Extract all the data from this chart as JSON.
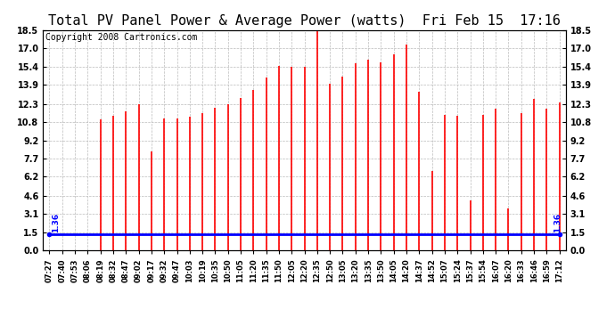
{
  "title": "Total PV Panel Power & Average Power (watts)  Fri Feb 15  17:16",
  "copyright": "Copyright 2008 Cartronics.com",
  "average_value": 1.36,
  "y_ticks": [
    0.0,
    1.5,
    3.1,
    4.6,
    6.2,
    7.7,
    9.2,
    10.8,
    12.3,
    13.9,
    15.4,
    17.0,
    18.5
  ],
  "ylim": [
    0.0,
    18.5
  ],
  "x_labels": [
    "07:27",
    "07:40",
    "07:53",
    "08:06",
    "08:19",
    "08:32",
    "08:47",
    "09:02",
    "09:17",
    "09:32",
    "09:47",
    "10:03",
    "10:19",
    "10:35",
    "10:50",
    "11:05",
    "11:20",
    "11:35",
    "11:50",
    "12:05",
    "12:20",
    "12:35",
    "12:50",
    "13:05",
    "13:20",
    "13:35",
    "13:50",
    "14:05",
    "14:20",
    "14:37",
    "14:52",
    "15:07",
    "15:24",
    "15:37",
    "15:54",
    "16:07",
    "16:20",
    "16:33",
    "16:46",
    "16:59",
    "17:12"
  ],
  "bar_values": [
    0.0,
    0.0,
    0.0,
    0.0,
    11.0,
    11.3,
    11.7,
    12.3,
    8.3,
    11.1,
    11.1,
    11.2,
    11.5,
    12.0,
    12.3,
    12.8,
    13.5,
    14.5,
    15.5,
    15.4,
    15.4,
    18.5,
    14.0,
    14.6,
    15.7,
    16.0,
    15.8,
    16.5,
    17.3,
    13.3,
    6.7,
    11.4,
    11.3,
    4.2,
    11.4,
    11.9,
    3.5,
    11.5,
    12.7,
    11.9,
    12.4
  ],
  "bar_color": "#ff0000",
  "line_color": "#0000ff",
  "background_color": "#ffffff",
  "grid_color": "#bbbbbb",
  "title_fontsize": 11,
  "copyright_fontsize": 7,
  "tick_fontsize": 7,
  "xlabel_fontsize": 6
}
